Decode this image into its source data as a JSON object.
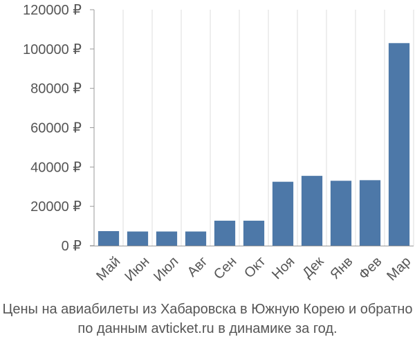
{
  "chart_data": {
    "type": "bar",
    "categories": [
      "Май",
      "Июн",
      "Июл",
      "Авг",
      "Сен",
      "Окт",
      "Ноя",
      "Дек",
      "Янв",
      "Фев",
      "Мар"
    ],
    "values": [
      7400,
      7200,
      7200,
      7200,
      12700,
      12700,
      32500,
      35500,
      33000,
      33300,
      103000
    ],
    "ytick_labels": [
      "0 ₽",
      "20000 ₽",
      "40000 ₽",
      "60000 ₽",
      "80000 ₽",
      "100000 ₽",
      "120000 ₽"
    ],
    "yticks": [
      0,
      20000,
      40000,
      60000,
      80000,
      100000,
      120000
    ],
    "ylim": [
      0,
      120000
    ],
    "grid": "vertical",
    "legend": "none",
    "bar_color": "#4d78a8",
    "grid_color": "#dddddd",
    "axis_color": "#999999",
    "text_color": "#555555"
  },
  "caption": {
    "line1": "Цены на авиабилеты из Хабаровска в Южную Корею и обратно",
    "line2": "по данным avticket.ru в динамике за год."
  }
}
